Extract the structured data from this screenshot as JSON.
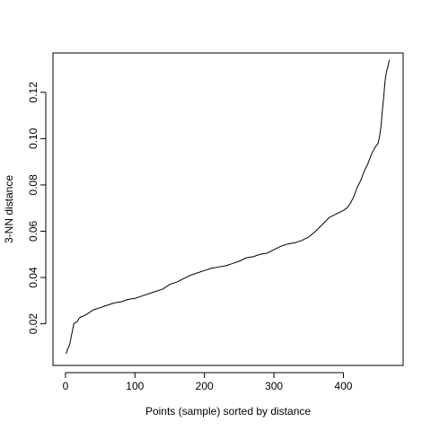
{
  "chart_data": {
    "type": "line",
    "title": "",
    "xlabel": "Points (sample) sorted by distance",
    "ylabel": "3-NN distance",
    "xlim": [
      -18,
      486
    ],
    "ylim": [
      0.002,
      0.137
    ],
    "x_ticks": [
      0,
      100,
      200,
      300,
      400
    ],
    "y_ticks": [
      0.02,
      0.04,
      0.06,
      0.08,
      0.1,
      0.12
    ],
    "x_tick_labels": [
      "0",
      "100",
      "200",
      "300",
      "400"
    ],
    "y_tick_labels": [
      "0.02",
      "0.04",
      "0.06",
      "0.08",
      "0.10",
      "0.12"
    ],
    "grid": false,
    "legend": "none",
    "line_color": "#000000",
    "series": [
      {
        "x": [
          1,
          3,
          6,
          8,
          10,
          12,
          14,
          17,
          20,
          22,
          25,
          30,
          35,
          40,
          45,
          50,
          55,
          60,
          70,
          80,
          90,
          100,
          110,
          120,
          130,
          140,
          150,
          160,
          170,
          180,
          190,
          200,
          210,
          220,
          230,
          240,
          250,
          260,
          270,
          280,
          290,
          300,
          310,
          320,
          330,
          340,
          350,
          360,
          370,
          380,
          390,
          400,
          405,
          410,
          415,
          420,
          425,
          430,
          435,
          440,
          445,
          450,
          452,
          454,
          456,
          458,
          460,
          462,
          464,
          466
        ],
        "y": [
          0.007,
          0.009,
          0.011,
          0.014,
          0.017,
          0.02,
          0.0205,
          0.021,
          0.0225,
          0.023,
          0.0232,
          0.024,
          0.025,
          0.026,
          0.0265,
          0.027,
          0.0275,
          0.028,
          0.029,
          0.0295,
          0.0305,
          0.031,
          0.032,
          0.033,
          0.034,
          0.035,
          0.037,
          0.038,
          0.0395,
          0.041,
          0.042,
          0.043,
          0.044,
          0.0445,
          0.045,
          0.046,
          0.047,
          0.0485,
          0.049,
          0.05,
          0.0505,
          0.052,
          0.0535,
          0.0545,
          0.055,
          0.056,
          0.0575,
          0.06,
          0.063,
          0.066,
          0.0675,
          0.069,
          0.07,
          0.072,
          0.075,
          0.079,
          0.082,
          0.086,
          0.089,
          0.093,
          0.096,
          0.098,
          0.101,
          0.105,
          0.112,
          0.118,
          0.125,
          0.129,
          0.131,
          0.134
        ]
      }
    ]
  }
}
